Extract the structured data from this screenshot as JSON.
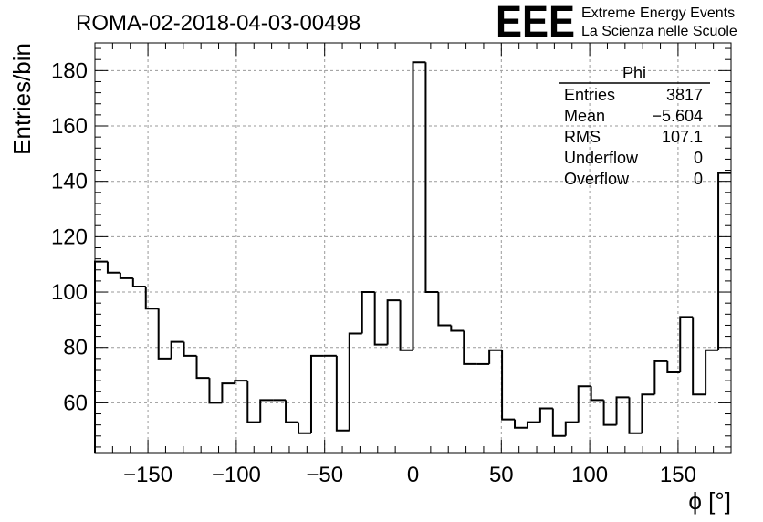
{
  "chart_data": {
    "type": "bar",
    "title": "ROMA-02-2018-04-03-00498",
    "xlabel": "ϕ [°]",
    "ylabel": "Entries/bin",
    "xlim": [
      -180,
      180
    ],
    "ylim": [
      42,
      190
    ],
    "bin_width": 7.2,
    "x_ticks": [
      -150,
      -100,
      -50,
      0,
      50,
      100,
      150
    ],
    "x_tick_labels": [
      "−150",
      "−100",
      "−50",
      "0",
      "50",
      "100",
      "150"
    ],
    "y_ticks": [
      60,
      80,
      100,
      120,
      140,
      160,
      180
    ],
    "y_tick_labels": [
      "60",
      "80",
      "100",
      "120",
      "140",
      "160",
      "180"
    ],
    "grid": true,
    "series": [
      {
        "name": "Phi",
        "values": [
          111,
          107,
          105,
          102,
          94,
          76,
          82,
          77,
          69,
          60,
          67,
          68,
          53,
          61,
          61,
          53,
          49,
          77,
          77,
          50,
          85,
          100,
          81,
          97,
          79,
          183,
          100,
          88,
          86,
          74,
          74,
          79,
          54,
          51,
          53,
          58,
          48,
          53,
          66,
          61,
          52,
          62,
          49,
          63,
          75,
          71,
          91,
          63,
          79,
          143
        ]
      }
    ],
    "stats_box": {
      "title": "Phi",
      "rows": [
        {
          "label": "Entries",
          "value": "3817"
        },
        {
          "label": "Mean",
          "value": "−5.604"
        },
        {
          "label": "RMS",
          "value": "107.1"
        },
        {
          "label": "Underflow",
          "value": "0"
        },
        {
          "label": "Overflow",
          "value": "0"
        }
      ]
    }
  },
  "logo": {
    "text": "EEE",
    "line1": "Extreme Energy Events",
    "line2": "La Scienza nelle Scuole",
    "color": "#1a1aee"
  }
}
